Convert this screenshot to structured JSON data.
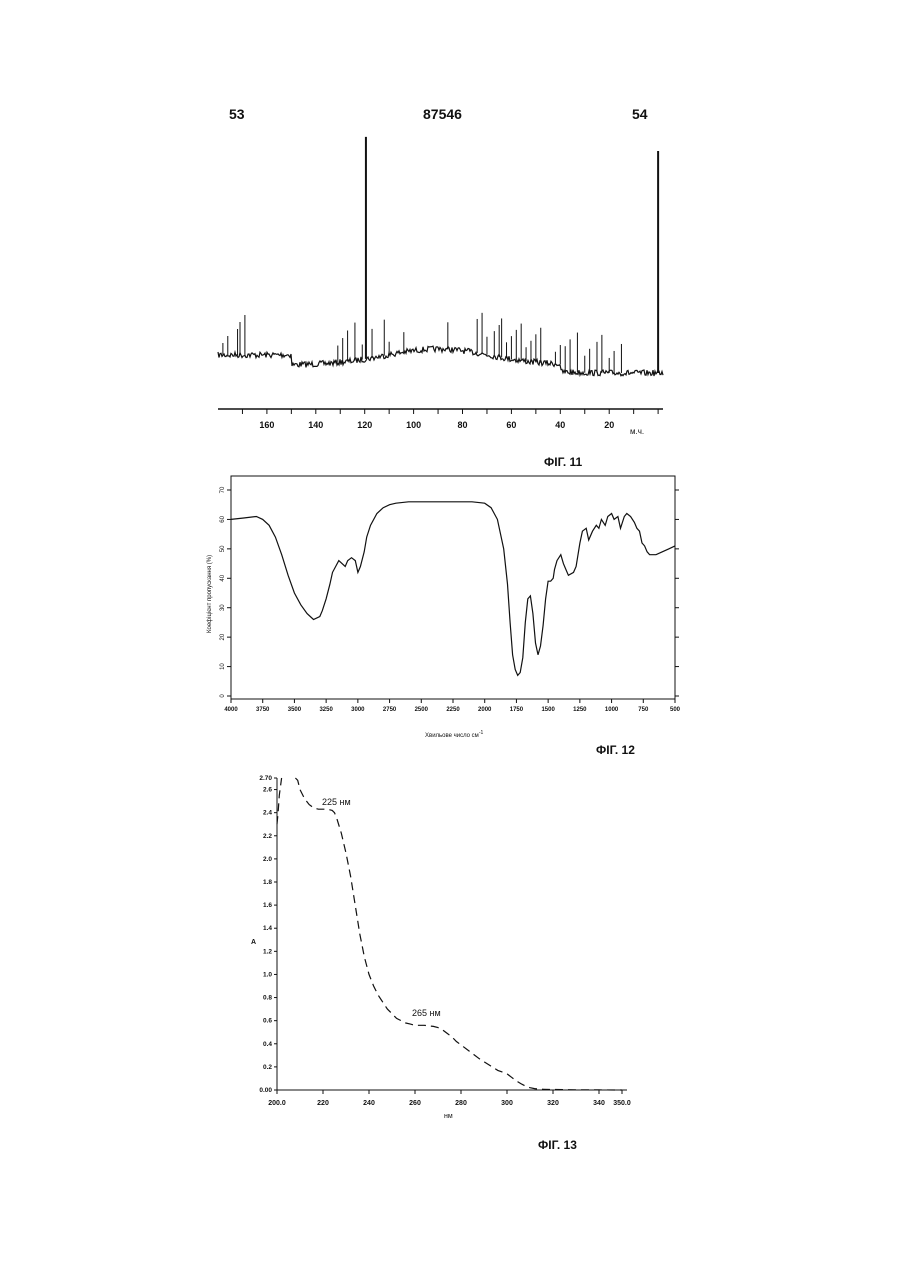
{
  "header": {
    "page_left": "53",
    "patent_number": "87546",
    "page_right": "54"
  },
  "fig11": {
    "caption": "ФІГ. 11",
    "x_unit": "м.ч.",
    "x_ticks": [
      "160",
      "140",
      "120",
      "100",
      "80",
      "60",
      "40",
      "20"
    ]
  },
  "fig12": {
    "caption": "ФІГ. 12",
    "xlabel": "Хвильове число см",
    "xlabel_sup": "-1",
    "ylabel": "Коефіцієнт пропускання (%)",
    "x_ticks": [
      "4000",
      "3750",
      "3500",
      "3250",
      "3000",
      "2750",
      "2500",
      "2250",
      "2000",
      "1750",
      "1500",
      "1250",
      "1000",
      "750",
      "500"
    ],
    "y_ticks": [
      "0",
      "10",
      "20",
      "30",
      "40",
      "50",
      "60",
      "70"
    ]
  },
  "fig13": {
    "caption": "ФІГ. 13",
    "xlabel": "нм",
    "ylabel": "A",
    "x_ticks": [
      "200.0",
      "220",
      "240",
      "260",
      "280",
      "300",
      "320",
      "340",
      "350.0"
    ],
    "y_ticks": [
      "0.00",
      "0.2",
      "0.4",
      "0.6",
      "0.8",
      "1.0",
      "1.2",
      "1.4",
      "1.6",
      "1.8",
      "2.0",
      "2.2",
      "2.4",
      "2.6",
      "2.70"
    ],
    "annotations": [
      "225 нм",
      "265 нм"
    ]
  },
  "chart_data": [
    {
      "type": "line",
      "title": "ФІГ. 11",
      "xlabel": "м.ч.",
      "xlim": [
        180,
        -2
      ],
      "x_ticks": [
        160,
        140,
        120,
        100,
        80,
        60,
        40,
        20
      ],
      "peaks": [
        178,
        176,
        172,
        171,
        169,
        131,
        129,
        127,
        124,
        121,
        119.5,
        117,
        112,
        110,
        104,
        86,
        74,
        72,
        70,
        67,
        65,
        64,
        62,
        60,
        58,
        56,
        54,
        52,
        50,
        48,
        42,
        40,
        38,
        36,
        33,
        30,
        28,
        25,
        23,
        20,
        18,
        15,
        0
      ],
      "tall_peaks": [
        119.5,
        0
      ]
    },
    {
      "type": "line",
      "title": "ФІГ. 12",
      "xlabel": "Хвильове число см-1",
      "ylabel": "Коефіцієнт пропускання (%)",
      "xlim": [
        4000,
        500
      ],
      "ylim": [
        0,
        70
      ],
      "series": [
        {
          "x": [
            4000,
            3900,
            3800,
            3750,
            3700,
            3650,
            3600,
            3550,
            3500,
            3450,
            3400,
            3350,
            3300,
            3280,
            3250,
            3220,
            3200,
            3150,
            3100,
            3080,
            3050,
            3020,
            3000,
            2980,
            2950,
            2930,
            2900,
            2850,
            2800,
            2750,
            2700,
            2600,
            2500,
            2400,
            2300,
            2200,
            2100,
            2000,
            1950,
            1900,
            1850,
            1820,
            1800,
            1780,
            1760,
            1740,
            1720,
            1700,
            1680,
            1660,
            1640,
            1620,
            1600,
            1580,
            1560,
            1540,
            1520,
            1500,
            1480,
            1460,
            1450,
            1430,
            1400,
            1380,
            1360,
            1340,
            1300,
            1280,
            1250,
            1230,
            1200,
            1180,
            1150,
            1120,
            1100,
            1080,
            1050,
            1030,
            1000,
            980,
            950,
            930,
            900,
            880,
            850,
            820,
            800,
            780,
            760,
            740,
            720,
            700,
            650,
            600,
            550,
            500
          ],
          "y": [
            60,
            60.5,
            61,
            60,
            58,
            54,
            48,
            41,
            35,
            31,
            28,
            26,
            27,
            29,
            33,
            38,
            42,
            46,
            44,
            46,
            47,
            46,
            42,
            44,
            49,
            54,
            58,
            62,
            64,
            65,
            65.5,
            66,
            66,
            66,
            66,
            66,
            66,
            65.5,
            64,
            60,
            50,
            38,
            25,
            14,
            9,
            7,
            8,
            13,
            25,
            33,
            34,
            28,
            18,
            14,
            17,
            24,
            33,
            39,
            39,
            40,
            43,
            46,
            48,
            45,
            43,
            41,
            42,
            44,
            52,
            56,
            57,
            53,
            56,
            58,
            57,
            60,
            58,
            61,
            62,
            60,
            61,
            57,
            61,
            62,
            61,
            59,
            57,
            56,
            52,
            51,
            49,
            48,
            48,
            49,
            50,
            51
          ]
        }
      ]
    },
    {
      "type": "line",
      "title": "ФІГ. 13",
      "xlabel": "нм",
      "ylabel": "A",
      "xlim": [
        200,
        350
      ],
      "ylim": [
        0,
        2.7
      ],
      "series": [
        {
          "x": [
            200,
            200.5,
            201,
            202,
            203,
            204,
            206,
            207,
            208,
            209,
            210,
            212,
            214,
            216,
            218,
            220,
            222,
            224,
            225,
            226,
            228,
            230,
            232,
            234,
            236,
            238,
            240,
            242,
            244,
            246,
            248,
            250,
            252,
            254,
            256,
            258,
            260,
            262,
            264,
            266,
            268,
            270,
            272,
            274,
            276,
            278,
            280,
            284,
            288,
            292,
            296,
            300,
            302,
            304,
            306,
            308,
            310,
            312,
            314,
            316,
            320,
            330,
            340,
            350
          ],
          "y": [
            2.3,
            2.4,
            2.55,
            2.7,
            null,
            null,
            null,
            null,
            2.75,
            2.68,
            2.6,
            2.52,
            2.47,
            2.44,
            2.43,
            2.43,
            2.43,
            2.42,
            2.4,
            2.35,
            2.22,
            2.05,
            1.85,
            1.6,
            1.35,
            1.15,
            1.0,
            0.9,
            0.82,
            0.76,
            0.7,
            0.66,
            0.62,
            0.6,
            0.58,
            0.57,
            0.56,
            0.56,
            0.56,
            0.555,
            0.55,
            0.54,
            0.52,
            0.49,
            0.46,
            0.42,
            0.39,
            0.33,
            0.27,
            0.22,
            0.17,
            0.14,
            0.11,
            0.08,
            0.055,
            0.035,
            0.02,
            0.012,
            0.008,
            0.006,
            0.004,
            0.002,
            0.001,
            0.0
          ]
        }
      ],
      "annotations": [
        {
          "text": "225 нм",
          "x": 225,
          "y": 2.43
        },
        {
          "text": "265 нм",
          "x": 265,
          "y": 0.56
        }
      ]
    }
  ]
}
